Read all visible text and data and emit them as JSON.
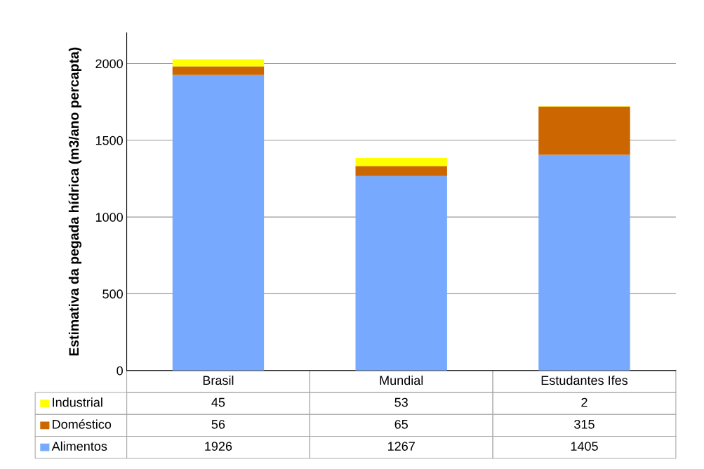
{
  "chart_data": {
    "type": "bar",
    "stacked": true,
    "ylabel": "Estimativa da pegada hídrica (m3/ano percapta)",
    "categories": [
      "Brasil",
      "Mundial",
      "Estudantes Ifes"
    ],
    "series": [
      {
        "name": "Alimentos",
        "color": "#77aaff",
        "values": [
          1926,
          1267,
          1405
        ]
      },
      {
        "name": "Doméstico",
        "color": "#cc6600",
        "values": [
          56,
          65,
          315
        ]
      },
      {
        "name": "Industrial",
        "color": "#ffff00",
        "values": [
          45,
          53,
          2
        ]
      }
    ],
    "ylim": [
      0,
      2200
    ],
    "yticks": [
      0,
      500,
      1000,
      1500,
      2000
    ],
    "grid": "y",
    "data_labels": true,
    "legend": "bottom left"
  }
}
